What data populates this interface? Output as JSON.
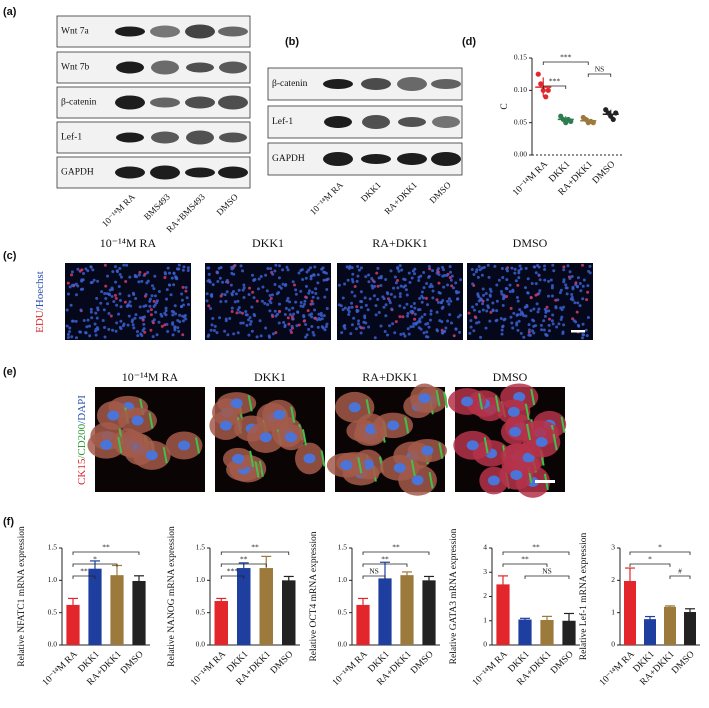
{
  "panels": {
    "a": "(a)",
    "b": "(b)",
    "c": "(c)",
    "d": "(d)",
    "e": "(e)",
    "f": "(f)"
  },
  "blot_a": {
    "rows": [
      "Wnt 7a",
      "Wnt 7b",
      "β-catenin",
      "Lef-1",
      "GAPDH"
    ],
    "lanes": [
      "10⁻¹⁴M RA",
      "BMS493",
      "RA+BMS493",
      "DMSO"
    ]
  },
  "blot_b": {
    "rows": [
      "β-catenin",
      "Lef-1",
      "GAPDH"
    ],
    "lanes": [
      "10⁻¹⁴M RA",
      "DKK1",
      "RA+DKK1",
      "DMSO"
    ]
  },
  "edu": {
    "stain": [
      "EDU",
      "/Hoechst"
    ],
    "titles": [
      "10⁻¹⁴M RA",
      "DKK1",
      "RA+DKK1",
      "DMSO"
    ]
  },
  "if_stain": {
    "stain": [
      "CK15",
      "/CD200",
      "/DAPI"
    ],
    "titles": [
      "10⁻¹⁴M RA",
      "DKK1",
      "RA+DKK1",
      "DMSO"
    ]
  },
  "chart_data": [
    {
      "type": "dot",
      "y_label": "C",
      "categories": [
        "10⁻¹⁴M RA",
        "DKK1",
        "RA+DKK1",
        "DMSO"
      ],
      "values": [
        0.105,
        0.055,
        0.053,
        0.063
      ],
      "errors": [
        0.015,
        0.005,
        0.004,
        0.007
      ],
      "points": [
        [
          0.125,
          0.11,
          0.1,
          0.09,
          0.1
        ],
        [
          0.06,
          0.055,
          0.05,
          0.055,
          0.052
        ],
        [
          0.058,
          0.055,
          0.05,
          0.052,
          0.05
        ],
        [
          0.07,
          0.065,
          0.06,
          0.055,
          0.065
        ]
      ],
      "colors": [
        "#e3262b",
        "#2e7d4f",
        "#9c7a3c",
        "#222222"
      ],
      "ylim": [
        0,
        0.15
      ],
      "yticks": [
        {
          "value": 0,
          "label": "0.00"
        },
        0.05,
        {
          "value": 0.1,
          "label": "0.10"
        },
        0.15
      ],
      "significance": [
        {
          "pair": [
            0,
            1
          ],
          "label": "***"
        },
        {
          "pair": [
            2,
            3
          ],
          "label": "NS"
        },
        {
          "pair": [
            0,
            2
          ],
          "label": "***"
        }
      ]
    },
    {
      "type": "bar",
      "y_label": "Relative NFATC1 mRNA expression",
      "categories": [
        "10⁻¹⁴M RA",
        "DKK1",
        "RA+DKK1",
        "DMSO"
      ],
      "values": [
        0.62,
        1.18,
        1.08,
        0.99
      ],
      "errors": [
        0.1,
        0.12,
        0.15,
        0.08
      ],
      "colors": [
        "#e3262b",
        "#1f3fa0",
        "#9c7a3c",
        "#222222"
      ],
      "ylim": [
        0,
        1.5
      ],
      "yticks": [
        {
          "value": 0,
          "label": "0.0"
        },
        0.5,
        {
          "value": 1,
          "label": "1.0"
        },
        1.5
      ],
      "significance": [
        {
          "pair": [
            0,
            1
          ],
          "label": "**"
        },
        {
          "pair": [
            0,
            2
          ],
          "label": "*"
        },
        {
          "pair": [
            0,
            3
          ],
          "label": "**"
        }
      ]
    },
    {
      "type": "bar",
      "y_label": "Relative NANOG mRNA expression",
      "categories": [
        "10⁻¹⁴M RA",
        "DKK1",
        "RA+DKK1",
        "DMSO"
      ],
      "values": [
        0.68,
        1.19,
        1.19,
        1.0
      ],
      "errors": [
        0.04,
        0.08,
        0.18,
        0.06
      ],
      "colors": [
        "#e3262b",
        "#1f3fa0",
        "#9c7a3c",
        "#222222"
      ],
      "ylim": [
        0,
        1.5
      ],
      "yticks": [
        {
          "value": 0,
          "label": "0.0"
        },
        0.5,
        {
          "value": 1,
          "label": "1.0"
        },
        1.5
      ],
      "significance": [
        {
          "pair": [
            0,
            1
          ],
          "label": "***"
        },
        {
          "pair": [
            0,
            2
          ],
          "label": "**"
        },
        {
          "pair": [
            0,
            3
          ],
          "label": "**"
        }
      ]
    },
    {
      "type": "bar",
      "y_label": "Relative OCT4 mRNA expression",
      "categories": [
        "10⁻¹⁴M RA",
        "DKK1",
        "RA+DKK1",
        "DMSO"
      ],
      "values": [
        0.62,
        1.03,
        1.08,
        1.0
      ],
      "errors": [
        0.1,
        0.25,
        0.05,
        0.06
      ],
      "colors": [
        "#e3262b",
        "#1f3fa0",
        "#9c7a3c",
        "#222222"
      ],
      "ylim": [
        0,
        1.5
      ],
      "yticks": [
        {
          "value": 0,
          "label": "0.0"
        },
        0.5,
        {
          "value": 1,
          "label": "1.0"
        },
        1.5
      ],
      "significance": [
        {
          "pair": [
            0,
            1
          ],
          "label": "NS"
        },
        {
          "pair": [
            0,
            2
          ],
          "label": "**"
        },
        {
          "pair": [
            0,
            3
          ],
          "label": "**"
        }
      ]
    },
    {
      "type": "bar",
      "y_label": "Relative GATA3 mRNA expression",
      "categories": [
        "10⁻¹⁴M RA",
        "DKK1",
        "RA+DKK1",
        "DMSO"
      ],
      "values": [
        2.5,
        1.05,
        1.03,
        1.0
      ],
      "errors": [
        0.35,
        0.05,
        0.15,
        0.3
      ],
      "colors": [
        "#e3262b",
        "#1f3fa0",
        "#9c7a3c",
        "#222222"
      ],
      "ylim": [
        0,
        4
      ],
      "yticks": [
        0,
        1,
        2,
        3,
        4
      ],
      "significance": [
        {
          "pair": [
            1,
            3
          ],
          "label": "NS"
        },
        {
          "pair": [
            0,
            2
          ],
          "label": "**"
        },
        {
          "pair": [
            0,
            3
          ],
          "label": "**"
        }
      ]
    },
    {
      "type": "bar",
      "y_label": "Relative Lef-1 mRNA expression",
      "categories": [
        "10⁻¹⁴M RA",
        "DKK1",
        "RA+DKK1",
        "DMSO"
      ],
      "values": [
        1.98,
        0.8,
        1.18,
        1.02
      ],
      "errors": [
        0.4,
        0.08,
        0.03,
        0.1
      ],
      "colors": [
        "#e3262b",
        "#1f3fa0",
        "#9c7a3c",
        "#222222"
      ],
      "ylim": [
        0,
        3
      ],
      "yticks": [
        0,
        1,
        2,
        3
      ],
      "significance": [
        {
          "pair": [
            2,
            3
          ],
          "label": "#"
        },
        {
          "pair": [
            0,
            2
          ],
          "label": "*"
        },
        {
          "pair": [
            0,
            3
          ],
          "label": "*"
        }
      ]
    }
  ]
}
